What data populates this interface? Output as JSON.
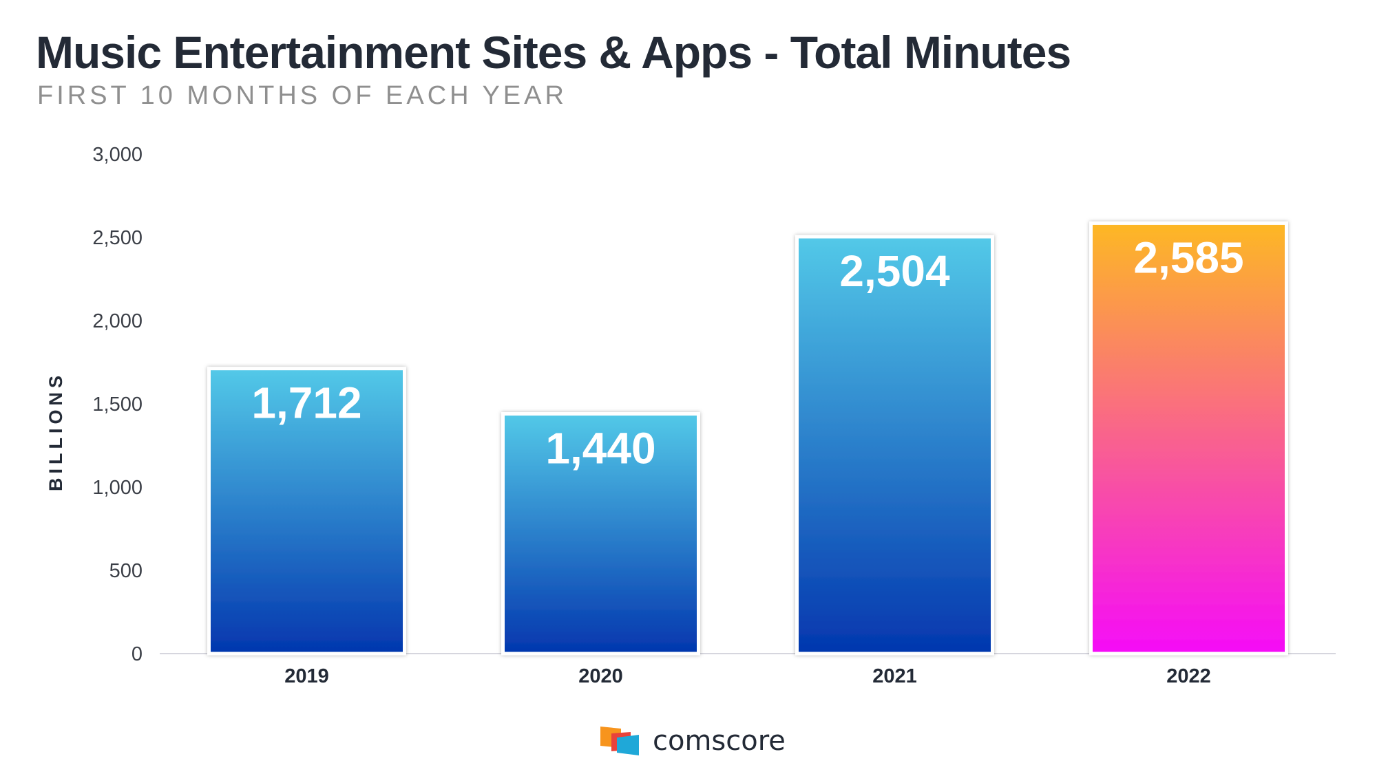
{
  "title": "Music Entertainment Sites & Apps - Total Minutes",
  "subtitle": "FIRST 10 MONTHS OF EACH YEAR",
  "brand": {
    "name": "comscore",
    "logo_icon": "comscore-logo-icon",
    "colors": [
      "#f7941d",
      "#e8423b",
      "#1fa8d8"
    ]
  },
  "chart_data": {
    "type": "bar",
    "title": "Music Entertainment Sites & Apps - Total Minutes",
    "subtitle": "FIRST 10 MONTHS OF EACH YEAR",
    "xlabel": "",
    "ylabel": "BILLIONS",
    "ylim": [
      0,
      3000
    ],
    "yticks": [
      0,
      500,
      1000,
      1500,
      2000,
      2500,
      3000
    ],
    "ytick_labels": [
      "0",
      "500",
      "1,000",
      "1,500",
      "2,000",
      "2,500",
      "3,000"
    ],
    "grid": false,
    "categories": [
      "2019",
      "2020",
      "2021",
      "2022"
    ],
    "values": [
      1712,
      1440,
      2504,
      2585
    ],
    "value_labels": [
      "1,712",
      "1,440",
      "2,504",
      "2,585"
    ],
    "bar_gradients": [
      [
        "#53c9e8",
        "#0336ae"
      ],
      [
        "#53c9e8",
        "#0336ae"
      ],
      [
        "#53c9e8",
        "#0336ae"
      ],
      [
        "#fdb824",
        "#f50cf8"
      ]
    ]
  }
}
